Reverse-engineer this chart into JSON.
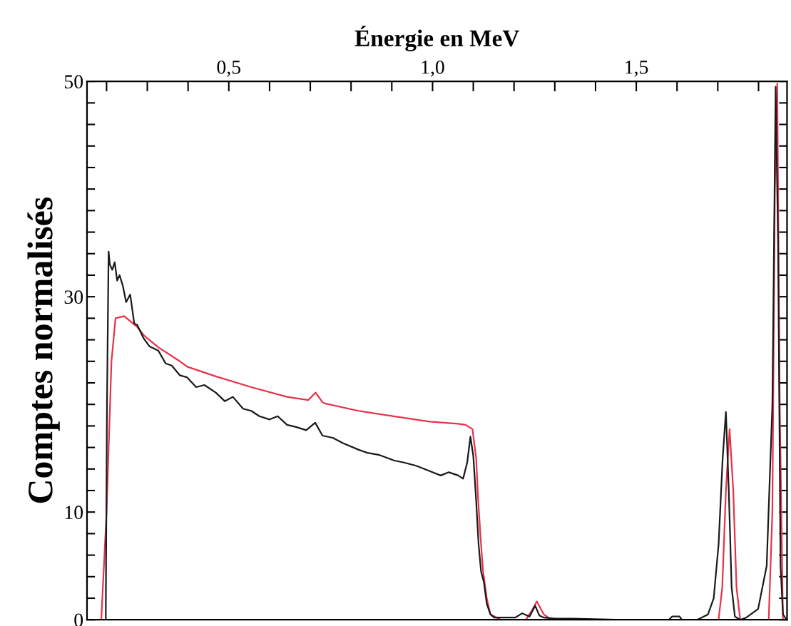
{
  "chart_data": {
    "type": "line",
    "xlabel": "Énergie en MeV",
    "ylabel": "Comptes normalisés",
    "xlim": [
      0.152,
      1.87
    ],
    "ylim": [
      0,
      50
    ],
    "xticks": [
      {
        "value": 0.2,
        "label": null
      },
      {
        "value": 0.3,
        "label": null
      },
      {
        "value": 0.4,
        "label": null
      },
      {
        "value": 0.5,
        "label": "0,5"
      },
      {
        "value": 0.6,
        "label": null
      },
      {
        "value": 0.7,
        "label": null
      },
      {
        "value": 0.8,
        "label": null
      },
      {
        "value": 0.9,
        "label": null
      },
      {
        "value": 1.0,
        "label": "1,0"
      },
      {
        "value": 1.1,
        "label": null
      },
      {
        "value": 1.2,
        "label": null
      },
      {
        "value": 1.3,
        "label": null
      },
      {
        "value": 1.4,
        "label": null
      },
      {
        "value": 1.5,
        "label": "1,5"
      },
      {
        "value": 1.6,
        "label": null
      },
      {
        "value": 1.7,
        "label": null
      },
      {
        "value": 1.8,
        "label": null
      }
    ],
    "yticks": [
      0,
      {
        "value": 2,
        "label": null
      },
      {
        "value": 4,
        "label": null
      },
      {
        "value": 6,
        "label": null
      },
      {
        "value": 8,
        "label": null
      },
      10,
      {
        "value": 12,
        "label": null
      },
      {
        "value": 14,
        "label": null
      },
      {
        "value": 16,
        "label": null
      },
      {
        "value": 18,
        "label": null
      },
      {
        "value": 20,
        "label": null
      },
      {
        "value": 22,
        "label": null
      },
      {
        "value": 24,
        "label": null
      },
      {
        "value": 26,
        "label": null
      },
      {
        "value": 28,
        "label": null
      },
      30,
      {
        "value": 32,
        "label": null
      },
      {
        "value": 34,
        "label": null
      },
      {
        "value": 36,
        "label": null
      },
      {
        "value": 38,
        "label": null
      },
      {
        "value": 40,
        "label": null
      },
      {
        "value": 42,
        "label": null
      },
      {
        "value": 44,
        "label": null
      },
      {
        "value": 46,
        "label": null
      },
      {
        "value": 48,
        "label": null
      },
      50
    ],
    "grid": false,
    "line_style": "solid",
    "series": [
      {
        "color": "#e8324a",
        "x": [
          0.17,
          0.187,
          0.2,
          0.212,
          0.222,
          0.243,
          0.275,
          0.292,
          0.327,
          0.38,
          0.398,
          0.468,
          0.555,
          0.643,
          0.695,
          0.713,
          0.73,
          0.734,
          0.818,
          0.905,
          0.993,
          1.063,
          1.081,
          1.098,
          1.107,
          1.112,
          1.119,
          1.124,
          1.133,
          1.142,
          1.168,
          1.229,
          1.243,
          1.256,
          1.273,
          1.291,
          1.702,
          1.711,
          1.72,
          1.729,
          1.738,
          1.746,
          1.755,
          1.825,
          1.834,
          1.84,
          1.846,
          1.852,
          1.86
        ],
        "values": [
          0,
          0,
          10,
          24,
          28,
          28.2,
          27.2,
          26.4,
          25.3,
          24,
          23.5,
          22.6,
          21.6,
          20.7,
          20.4,
          21.1,
          20.2,
          20.1,
          19.4,
          18.9,
          18.4,
          18.2,
          18.1,
          17.7,
          15,
          11.1,
          7,
          4.5,
          2,
          0.5,
          0,
          0,
          0.8,
          1.7,
          0.5,
          0,
          0,
          3,
          12,
          17.7,
          12,
          3,
          0,
          0,
          10,
          40,
          49.8,
          20,
          0
        ]
      },
      {
        "color": "#1a1a1a",
        "x": [
          0.17,
          0.198,
          0.201,
          0.205,
          0.208,
          0.214,
          0.22,
          0.226,
          0.232,
          0.24,
          0.248,
          0.258,
          0.268,
          0.275,
          0.29,
          0.305,
          0.327,
          0.345,
          0.36,
          0.38,
          0.398,
          0.42,
          0.44,
          0.468,
          0.49,
          0.51,
          0.535,
          0.555,
          0.575,
          0.6,
          0.62,
          0.643,
          0.665,
          0.69,
          0.712,
          0.73,
          0.755,
          0.78,
          0.818,
          0.84,
          0.87,
          0.905,
          0.93,
          0.96,
          0.993,
          1.02,
          1.04,
          1.063,
          1.075,
          1.085,
          1.093,
          1.1,
          1.107,
          1.113,
          1.119,
          1.126,
          1.133,
          1.142,
          1.151,
          1.175,
          1.203,
          1.22,
          1.238,
          1.252,
          1.262,
          1.273,
          1.3,
          1.343,
          1.45,
          1.58,
          1.588,
          1.606,
          1.612,
          1.65,
          1.676,
          1.69,
          1.702,
          1.712,
          1.72,
          1.727,
          1.734,
          1.742,
          1.755,
          1.77,
          1.799,
          1.82,
          1.834,
          1.842,
          1.848,
          1.854,
          1.86,
          1.869
        ],
        "values": [
          0,
          0,
          20,
          34.2,
          33,
          32.5,
          33.2,
          31.5,
          32,
          31,
          29.5,
          30.2,
          27.5,
          27.4,
          26.2,
          25.4,
          25,
          23.8,
          23.6,
          22.7,
          22.5,
          21.6,
          21.8,
          21.1,
          20.3,
          20.7,
          19.6,
          19.4,
          18.9,
          18.6,
          18.9,
          18.1,
          17.9,
          17.6,
          18.3,
          17.1,
          16.9,
          16.4,
          15.8,
          15.5,
          15.3,
          14.8,
          14.6,
          14.3,
          13.8,
          13.4,
          13.7,
          13.4,
          13.1,
          14.6,
          17,
          15.2,
          11.1,
          7,
          4.5,
          3.5,
          1.5,
          0.5,
          0.2,
          0.2,
          0.2,
          0.6,
          0.3,
          1.3,
          0.4,
          0.2,
          0.1,
          0.1,
          0,
          0,
          0.3,
          0.3,
          0,
          0,
          0.5,
          2,
          7,
          15,
          19.3,
          12,
          3,
          0.3,
          0,
          0.2,
          1,
          5,
          20,
          49.5,
          35,
          5,
          0.5,
          0
        ]
      }
    ]
  }
}
